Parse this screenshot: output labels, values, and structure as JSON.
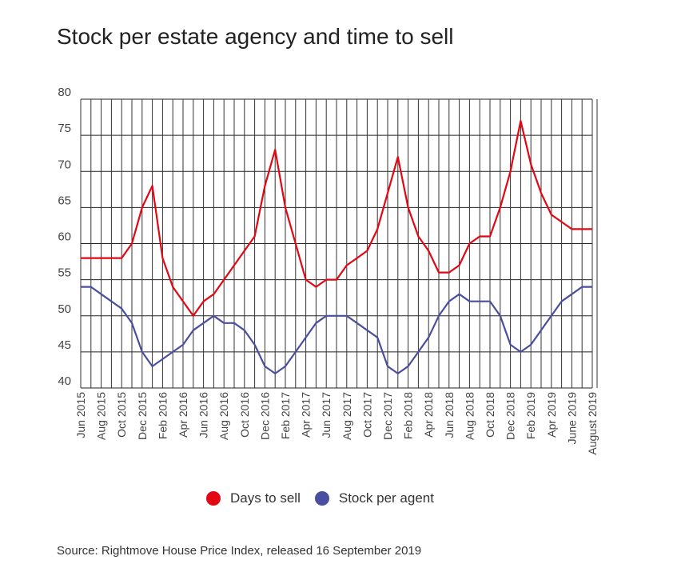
{
  "title": "Stock per estate agency and time to sell",
  "source": "Source: Rightmove House Price Index, released 16 September 2019",
  "legend": [
    {
      "label": "Days to sell",
      "color": "#e30613"
    },
    {
      "label": "Stock per agent",
      "color": "#4a4e9e"
    }
  ],
  "chart_data": {
    "type": "line",
    "ylim": [
      40,
      80
    ],
    "yticks": [
      40,
      45,
      50,
      55,
      60,
      65,
      70,
      75,
      80
    ],
    "grid": true,
    "legend_position": "bottom",
    "x_tick_labels": [
      "Jun 2015",
      "Aug 2015",
      "Oct 2015",
      "Dec 2015",
      "Feb 2016",
      "Apr 2016",
      "Jun 2016",
      "Aug 2016",
      "Oct 2016",
      "Dec 2016",
      "Feb 2017",
      "Apr 2017",
      "Jun 2017",
      "Aug 2017",
      "Oct 2017",
      "Dec 2017",
      "Feb 2018",
      "Apr 2018",
      "Jun 2018",
      "Aug 2018",
      "Oct 2018",
      "Dec 2018",
      "Feb 2019",
      "Apr 2019",
      "June 2019",
      "August 2019"
    ],
    "x": [
      "Jun 2015",
      "Jul 2015",
      "Aug 2015",
      "Sep 2015",
      "Oct 2015",
      "Nov 2015",
      "Dec 2015",
      "Jan 2016",
      "Feb 2016",
      "Mar 2016",
      "Apr 2016",
      "May 2016",
      "Jun 2016",
      "Jul 2016",
      "Aug 2016",
      "Sep 2016",
      "Oct 2016",
      "Nov 2016",
      "Dec 2016",
      "Jan 2017",
      "Feb 2017",
      "Mar 2017",
      "Apr 2017",
      "May 2017",
      "Jun 2017",
      "Jul 2017",
      "Aug 2017",
      "Sep 2017",
      "Oct 2017",
      "Nov 2017",
      "Dec 2017",
      "Jan 2018",
      "Feb 2018",
      "Mar 2018",
      "Apr 2018",
      "May 2018",
      "Jun 2018",
      "Jul 2018",
      "Aug 2018",
      "Sep 2018",
      "Oct 2018",
      "Nov 2018",
      "Dec 2018",
      "Jan 2019",
      "Feb 2019",
      "Mar 2019",
      "Apr 2019",
      "May 2019",
      "Jun 2019",
      "Jul 2019",
      "Aug 2019"
    ],
    "series": [
      {
        "name": "Days to sell",
        "color": "#e30613",
        "values": [
          58,
          58,
          58,
          58,
          58,
          60,
          65,
          68,
          58,
          54,
          52,
          50,
          52,
          53,
          55,
          57,
          59,
          61,
          68,
          73,
          65,
          60,
          55,
          54,
          55,
          55,
          57,
          58,
          59,
          62,
          67,
          72,
          65,
          61,
          59,
          56,
          56,
          57,
          60,
          61,
          61,
          65,
          70,
          77,
          71,
          67,
          64,
          63,
          62,
          62,
          62
        ]
      },
      {
        "name": "Stock per agent",
        "color": "#4a4e9e",
        "values": [
          54,
          54,
          53,
          52,
          51,
          49,
          45,
          43,
          44,
          45,
          46,
          48,
          49,
          50,
          49,
          49,
          48,
          46,
          43,
          42,
          43,
          45,
          47,
          49,
          50,
          50,
          50,
          49,
          48,
          47,
          43,
          42,
          43,
          45,
          47,
          50,
          52,
          53,
          52,
          52,
          52,
          50,
          46,
          45,
          46,
          48,
          50,
          52,
          53,
          54,
          54
        ]
      }
    ]
  }
}
